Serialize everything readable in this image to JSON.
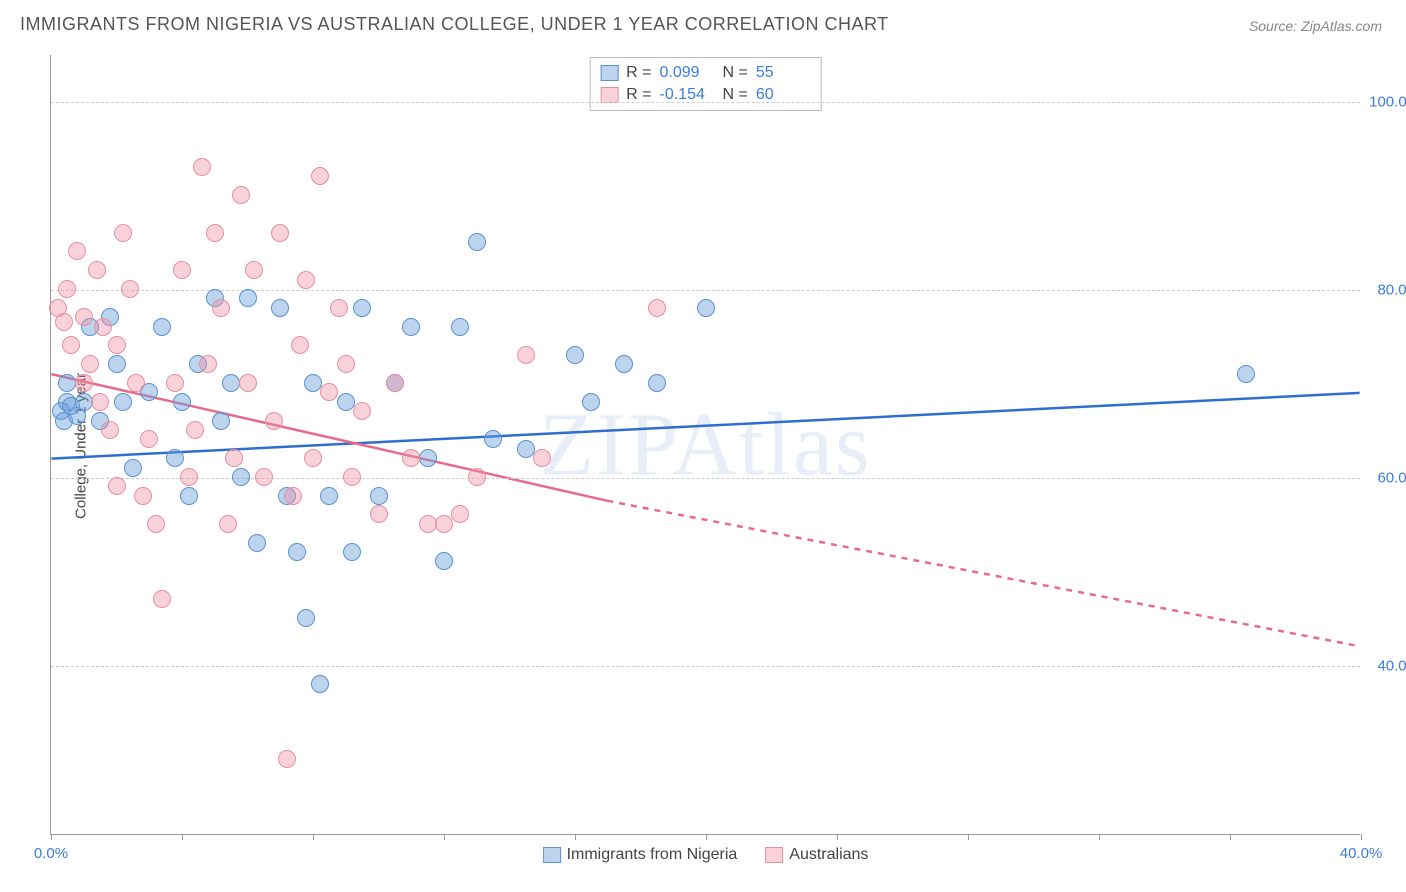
{
  "title": "IMMIGRANTS FROM NIGERIA VS AUSTRALIAN COLLEGE, UNDER 1 YEAR CORRELATION CHART",
  "source": "Source: ZipAtlas.com",
  "watermark": "ZIPAtlas",
  "ylabel": "College, Under 1 year",
  "chart": {
    "type": "scatter",
    "background_color": "#ffffff",
    "grid_color": "#cccccc",
    "axis_color": "#999999",
    "text_color": "#444444",
    "value_color": "#3b7dd8",
    "xlim": [
      0,
      40
    ],
    "ylim": [
      22,
      105
    ],
    "xticks": [
      0,
      4,
      8,
      12,
      16,
      20,
      24,
      28,
      32,
      36,
      40
    ],
    "xtick_labels": {
      "0": "0.0%",
      "40": "40.0%"
    },
    "yticks": [
      40,
      60,
      80,
      100
    ],
    "ytick_labels": {
      "40": "40.0%",
      "60": "60.0%",
      "80": "80.0%",
      "100": "100.0%"
    },
    "marker_radius": 9,
    "marker_opacity": 0.55,
    "line_width": 2.5
  },
  "series": [
    {
      "name": "Immigrants from Nigeria",
      "color_fill": "rgba(108,160,220,0.45)",
      "color_stroke": "#5a93d0",
      "line_color": "#2d6fd0",
      "R": "0.099",
      "N": "55",
      "regression": {
        "x1": 0,
        "y1": 62,
        "x2": 40,
        "y2": 69,
        "dash_after_x": 40
      },
      "points": [
        [
          0.3,
          67
        ],
        [
          0.4,
          66
        ],
        [
          0.5,
          68
        ],
        [
          0.6,
          67.5
        ],
        [
          0.8,
          66.5
        ],
        [
          0.5,
          70
        ],
        [
          1.0,
          68
        ],
        [
          1.2,
          76
        ],
        [
          1.5,
          66
        ],
        [
          1.8,
          77
        ],
        [
          2.0,
          72
        ],
        [
          2.2,
          68
        ],
        [
          2.5,
          61
        ],
        [
          3.0,
          69
        ],
        [
          3.4,
          76
        ],
        [
          3.8,
          62
        ],
        [
          4.0,
          68
        ],
        [
          4.2,
          58
        ],
        [
          4.5,
          72
        ],
        [
          5.0,
          79
        ],
        [
          5.2,
          66
        ],
        [
          5.5,
          70
        ],
        [
          5.8,
          60
        ],
        [
          6.0,
          79
        ],
        [
          6.3,
          53
        ],
        [
          7.0,
          78
        ],
        [
          7.2,
          58
        ],
        [
          7.5,
          52
        ],
        [
          7.8,
          45
        ],
        [
          8.0,
          70
        ],
        [
          8.2,
          38
        ],
        [
          8.5,
          58
        ],
        [
          9.0,
          68
        ],
        [
          9.2,
          52
        ],
        [
          9.5,
          78
        ],
        [
          10.0,
          58
        ],
        [
          10.5,
          70
        ],
        [
          11.0,
          76
        ],
        [
          11.5,
          62
        ],
        [
          12.0,
          51
        ],
        [
          12.5,
          76
        ],
        [
          13.0,
          85
        ],
        [
          13.5,
          64
        ],
        [
          14.5,
          63
        ],
        [
          16.0,
          73
        ],
        [
          16.5,
          68
        ],
        [
          17.5,
          72
        ],
        [
          18.5,
          70
        ],
        [
          20.0,
          78
        ],
        [
          36.5,
          71
        ]
      ]
    },
    {
      "name": "Australians",
      "color_fill": "rgba(240,140,160,0.40)",
      "color_stroke": "#e690a4",
      "line_color": "#e86a8a",
      "R": "-0.154",
      "N": "60",
      "regression": {
        "x1": 0,
        "y1": 71,
        "x2": 17,
        "y2": 57.5,
        "dash_after_x": 17,
        "x3": 40,
        "y3": 42
      },
      "points": [
        [
          0.2,
          78
        ],
        [
          0.4,
          76.5
        ],
        [
          0.5,
          80
        ],
        [
          0.6,
          74
        ],
        [
          0.8,
          84
        ],
        [
          1.0,
          77
        ],
        [
          1.0,
          70
        ],
        [
          1.2,
          72
        ],
        [
          1.4,
          82
        ],
        [
          1.5,
          68
        ],
        [
          1.6,
          76
        ],
        [
          1.8,
          65
        ],
        [
          2.0,
          74
        ],
        [
          2.0,
          59
        ],
        [
          2.2,
          86
        ],
        [
          2.4,
          80
        ],
        [
          2.6,
          70
        ],
        [
          2.8,
          58
        ],
        [
          3.0,
          64
        ],
        [
          3.2,
          55
        ],
        [
          3.4,
          47
        ],
        [
          3.8,
          70
        ],
        [
          4.0,
          82
        ],
        [
          4.2,
          60
        ],
        [
          4.4,
          65
        ],
        [
          4.6,
          93
        ],
        [
          4.8,
          72
        ],
        [
          5.0,
          86
        ],
        [
          5.2,
          78
        ],
        [
          5.4,
          55
        ],
        [
          5.6,
          62
        ],
        [
          5.8,
          90
        ],
        [
          6.0,
          70
        ],
        [
          6.2,
          82
        ],
        [
          6.5,
          60
        ],
        [
          6.8,
          66
        ],
        [
          7.0,
          86
        ],
        [
          7.2,
          30
        ],
        [
          7.4,
          58
        ],
        [
          7.6,
          74
        ],
        [
          7.8,
          81
        ],
        [
          8.0,
          62
        ],
        [
          8.2,
          92
        ],
        [
          8.5,
          69
        ],
        [
          8.8,
          78
        ],
        [
          9.0,
          72
        ],
        [
          9.2,
          60
        ],
        [
          9.5,
          67
        ],
        [
          10.0,
          56
        ],
        [
          10.5,
          70
        ],
        [
          11.0,
          62
        ],
        [
          11.5,
          55
        ],
        [
          12.0,
          55
        ],
        [
          12.5,
          56
        ],
        [
          13.0,
          60
        ],
        [
          14.5,
          73
        ],
        [
          15.0,
          62
        ],
        [
          18.5,
          78
        ]
      ]
    }
  ],
  "stats_labels": {
    "R": "R =",
    "N": "N ="
  },
  "legend": {
    "series1": "Immigrants from Nigeria",
    "series2": "Australians"
  }
}
